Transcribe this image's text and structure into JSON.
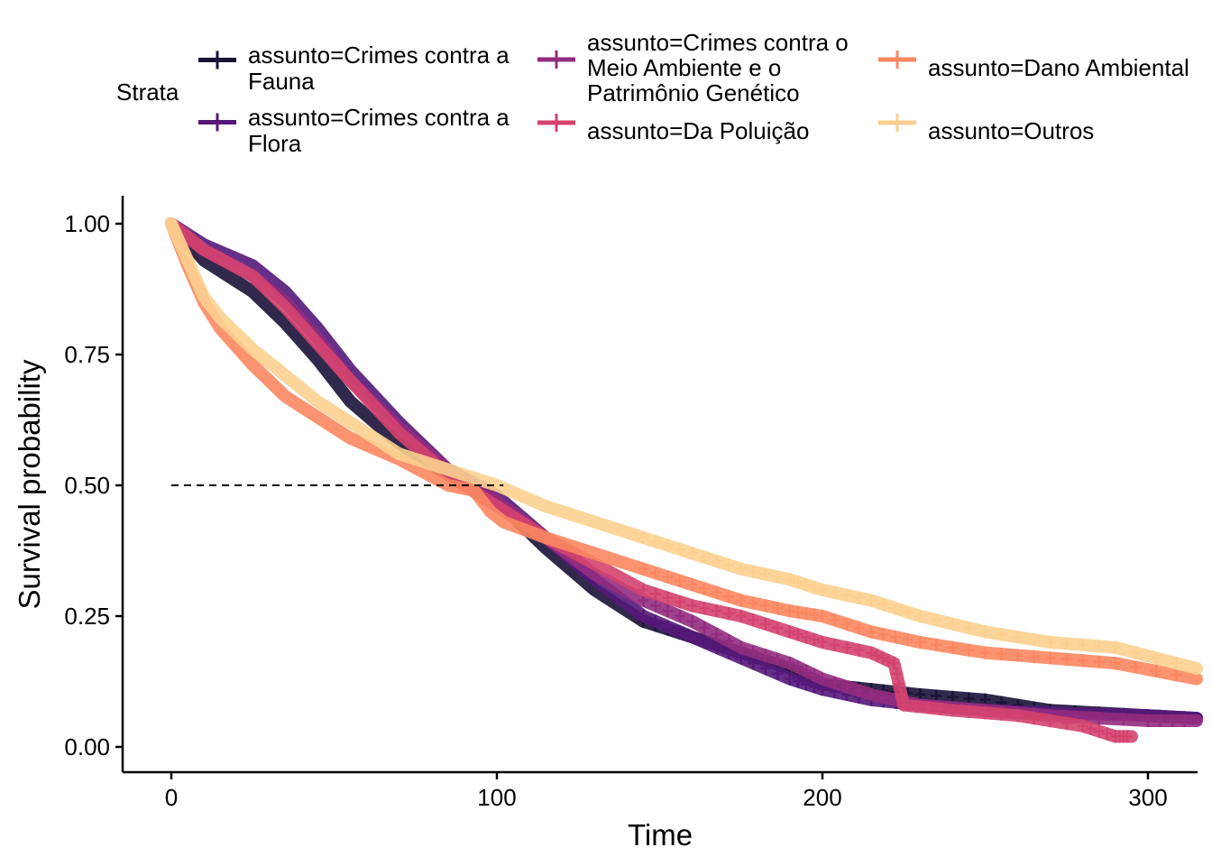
{
  "chart_data": {
    "type": "line",
    "subtype": "kaplan-meier survival curves",
    "title": "",
    "xlabel": "Time",
    "ylabel": "Survival probability",
    "xlim": [
      -15,
      315
    ],
    "ylim": [
      -0.05,
      1.05
    ],
    "x_ticks": [
      0,
      100,
      200,
      300
    ],
    "x_tick_labels": [
      "0",
      "100",
      "200",
      "300"
    ],
    "y_ticks": [
      0,
      0.25,
      0.5,
      0.75,
      1.0
    ],
    "y_tick_labels": [
      "0.00",
      "0.25",
      "0.50",
      "0.75",
      "1.00"
    ],
    "grid": false,
    "legend": {
      "title": "Strata",
      "position": "top",
      "columns": [
        [
          0,
          1
        ],
        [
          2,
          3
        ],
        [
          4,
          5
        ]
      ]
    },
    "median_line": {
      "y": 0.5,
      "x_start": 0,
      "x_end": 102,
      "style": "dashed"
    },
    "series": [
      {
        "name": "assunto=Crimes contra a Fauna",
        "legend_lines": [
          "assunto=Crimes contra a",
          "Fauna"
        ],
        "color": "#1b1237",
        "x": [
          0,
          10,
          25,
          35,
          45,
          55,
          70,
          85,
          100,
          115,
          130,
          145,
          160,
          175,
          190,
          200,
          215,
          230,
          250,
          270,
          300,
          315
        ],
        "y": [
          1.0,
          0.93,
          0.87,
          0.81,
          0.74,
          0.66,
          0.58,
          0.52,
          0.47,
          0.38,
          0.3,
          0.24,
          0.21,
          0.18,
          0.15,
          0.12,
          0.11,
          0.1,
          0.09,
          0.07,
          0.06,
          0.055
        ]
      },
      {
        "name": "assunto=Crimes contra a Flora",
        "legend_lines": [
          "assunto=Crimes contra a",
          "Flora"
        ],
        "color": "#55187a",
        "x": [
          0,
          10,
          25,
          35,
          45,
          55,
          70,
          85,
          100,
          115,
          130,
          145,
          160,
          175,
          190,
          200,
          215,
          230,
          250,
          270,
          300,
          315
        ],
        "y": [
          1.0,
          0.96,
          0.92,
          0.87,
          0.8,
          0.72,
          0.62,
          0.53,
          0.48,
          0.4,
          0.32,
          0.25,
          0.21,
          0.17,
          0.13,
          0.11,
          0.09,
          0.08,
          0.07,
          0.065,
          0.06,
          0.055
        ]
      },
      {
        "name": "assunto=Crimes contra o Meio Ambiente e o Patrimônio Genético",
        "legend_lines": [
          "assunto=Crimes contra o",
          "Meio Ambiente e o",
          "Patrimônio Genético"
        ],
        "color": "#932c80",
        "x": [
          0,
          10,
          25,
          35,
          45,
          55,
          70,
          85,
          100,
          115,
          130,
          145,
          160,
          175,
          190,
          200,
          215,
          230,
          250,
          270,
          300,
          315
        ],
        "y": [
          1.0,
          0.95,
          0.9,
          0.85,
          0.78,
          0.7,
          0.61,
          0.53,
          0.47,
          0.4,
          0.33,
          0.28,
          0.24,
          0.19,
          0.16,
          0.13,
          0.1,
          0.08,
          0.07,
          0.06,
          0.05,
          0.05
        ]
      },
      {
        "name": "assunto=Da Poluição",
        "legend_lines": [
          "assunto=Da Poluição"
        ],
        "color": "#d4436e",
        "x": [
          0,
          10,
          25,
          35,
          45,
          55,
          70,
          85,
          100,
          115,
          130,
          145,
          160,
          175,
          190,
          200,
          215,
          222,
          225,
          240,
          260,
          280,
          290,
          295
        ],
        "y": [
          1.0,
          0.95,
          0.9,
          0.84,
          0.77,
          0.7,
          0.6,
          0.52,
          0.46,
          0.4,
          0.35,
          0.3,
          0.27,
          0.25,
          0.22,
          0.2,
          0.18,
          0.16,
          0.08,
          0.07,
          0.06,
          0.04,
          0.02,
          0.02
        ]
      },
      {
        "name": "assunto=Dano Ambiental",
        "legend_lines": [
          "assunto=Dano Ambiental"
        ],
        "color": "#fb8761",
        "x": [
          0,
          5,
          10,
          15,
          25,
          35,
          45,
          55,
          70,
          85,
          93,
          98,
          102,
          115,
          130,
          145,
          160,
          175,
          190,
          200,
          215,
          230,
          250,
          270,
          290,
          315
        ],
        "y": [
          1.0,
          0.92,
          0.85,
          0.8,
          0.73,
          0.67,
          0.63,
          0.59,
          0.55,
          0.5,
          0.49,
          0.45,
          0.43,
          0.4,
          0.37,
          0.34,
          0.31,
          0.28,
          0.26,
          0.25,
          0.22,
          0.2,
          0.18,
          0.17,
          0.16,
          0.13
        ]
      },
      {
        "name": "assunto=Outros",
        "legend_lines": [
          "assunto=Outros"
        ],
        "color": "#fcd08f",
        "x": [
          0,
          5,
          10,
          15,
          25,
          35,
          45,
          55,
          70,
          85,
          100,
          115,
          130,
          145,
          160,
          175,
          190,
          200,
          215,
          230,
          250,
          270,
          290,
          315
        ],
        "y": [
          1.0,
          0.93,
          0.86,
          0.82,
          0.76,
          0.71,
          0.66,
          0.62,
          0.56,
          0.53,
          0.5,
          0.46,
          0.43,
          0.4,
          0.37,
          0.34,
          0.32,
          0.3,
          0.28,
          0.25,
          0.22,
          0.2,
          0.19,
          0.15
        ]
      }
    ]
  }
}
